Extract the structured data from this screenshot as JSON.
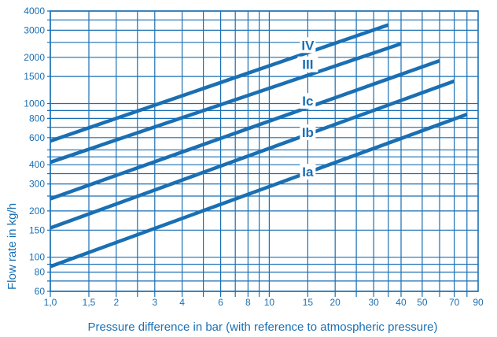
{
  "colors": {
    "accent": "#1a6fb3"
  },
  "chart_data": {
    "type": "line",
    "title": "",
    "xlabel": "Pressure difference in bar (with reference to atmospheric pressure)",
    "ylabel": "Flow rate in kg/h",
    "x_scale": "log",
    "y_scale": "log",
    "xlim": [
      1.0,
      90
    ],
    "ylim": [
      60,
      4000
    ],
    "grid": true,
    "x_grid": [
      1,
      1.5,
      2,
      2.5,
      3,
      4,
      5,
      6,
      7,
      8,
      9,
      10,
      15,
      20,
      25,
      30,
      35,
      40,
      50,
      60,
      70,
      80
    ],
    "y_grid": [
      60,
      70,
      80,
      90,
      100,
      150,
      200,
      250,
      300,
      350,
      400,
      450,
      500,
      600,
      700,
      800,
      900,
      1000,
      1500,
      2000,
      2500,
      3000,
      3500,
      4000
    ],
    "x_ticks": [
      {
        "value": 1.0,
        "label": "1,0"
      },
      {
        "value": 1.5,
        "label": "1,5"
      },
      {
        "value": 2,
        "label": "2"
      },
      {
        "value": 3,
        "label": "3"
      },
      {
        "value": 4,
        "label": "4"
      },
      {
        "value": 6,
        "label": "6"
      },
      {
        "value": 8,
        "label": "8"
      },
      {
        "value": 10,
        "label": "10"
      },
      {
        "value": 15,
        "label": "15"
      },
      {
        "value": 20,
        "label": "20"
      },
      {
        "value": 30,
        "label": "30"
      },
      {
        "value": 40,
        "label": "40"
      },
      {
        "value": 50,
        "label": "50"
      },
      {
        "value": 70,
        "label": "70"
      },
      {
        "value": 90,
        "label": "90"
      }
    ],
    "y_ticks": [
      {
        "value": 60,
        "label": "60"
      },
      {
        "value": 80,
        "label": "80"
      },
      {
        "value": 100,
        "label": "100"
      },
      {
        "value": 150,
        "label": "150"
      },
      {
        "value": 200,
        "label": "200"
      },
      {
        "value": 300,
        "label": "300"
      },
      {
        "value": 400,
        "label": "400"
      },
      {
        "value": 600,
        "label": "600"
      },
      {
        "value": 800,
        "label": "800"
      },
      {
        "value": 1000,
        "label": "1000"
      },
      {
        "value": 1500,
        "label": "1500"
      },
      {
        "value": 2000,
        "label": "2000"
      },
      {
        "value": 3000,
        "label": "3000"
      },
      {
        "value": 4000,
        "label": "4000"
      }
    ],
    "series": [
      {
        "name": "Ia",
        "points": [
          [
            1.0,
            87
          ],
          [
            80,
            850
          ]
        ],
        "label_at": [
          15,
          360
        ]
      },
      {
        "name": "Ib",
        "points": [
          [
            1.0,
            155
          ],
          [
            70,
            1400
          ]
        ],
        "label_at": [
          15,
          650
        ]
      },
      {
        "name": "Ic",
        "points": [
          [
            1.0,
            240
          ],
          [
            60,
            1900
          ]
        ],
        "label_at": [
          15,
          1040
        ]
      },
      {
        "name": "III",
        "points": [
          [
            1.0,
            415
          ],
          [
            40,
            2450
          ]
        ],
        "label_at": [
          15,
          1800
        ]
      },
      {
        "name": "IV",
        "points": [
          [
            1.0,
            570
          ],
          [
            35,
            3250
          ]
        ],
        "label_at": [
          15,
          2400
        ]
      }
    ]
  }
}
